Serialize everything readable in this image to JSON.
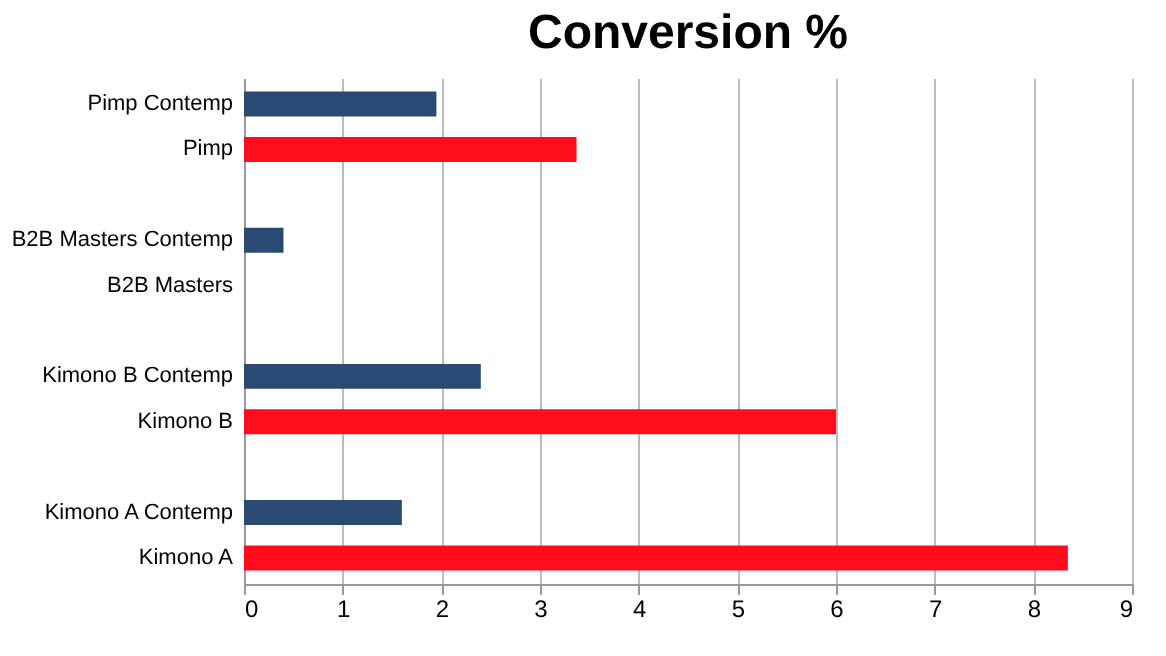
{
  "chart_data": {
    "type": "bar",
    "orientation": "horizontal",
    "title": "Conversion %",
    "categories": [
      "Pimp Contemp",
      "Pimp",
      null,
      "B2B Masters Contemp",
      "B2B Masters",
      null,
      "Kimono B Contemp",
      "Kimono B",
      null,
      "Kimono A Contemp",
      "Kimono A"
    ],
    "values": [
      1.95,
      3.37,
      null,
      0.4,
      0,
      null,
      2.4,
      6.0,
      null,
      1.6,
      8.35
    ],
    "colors": [
      "#2b4a73",
      "#ff0d1d",
      null,
      "#2b4a73",
      "#ff0d1d",
      null,
      "#2b4a73",
      "#ff0d1d",
      null,
      "#2b4a73",
      "#ff0d1d"
    ],
    "xlim": [
      0,
      9
    ],
    "xticks": [
      0,
      1,
      2,
      3,
      4,
      5,
      6,
      7,
      8,
      9
    ],
    "grid": "x",
    "legend": false
  }
}
